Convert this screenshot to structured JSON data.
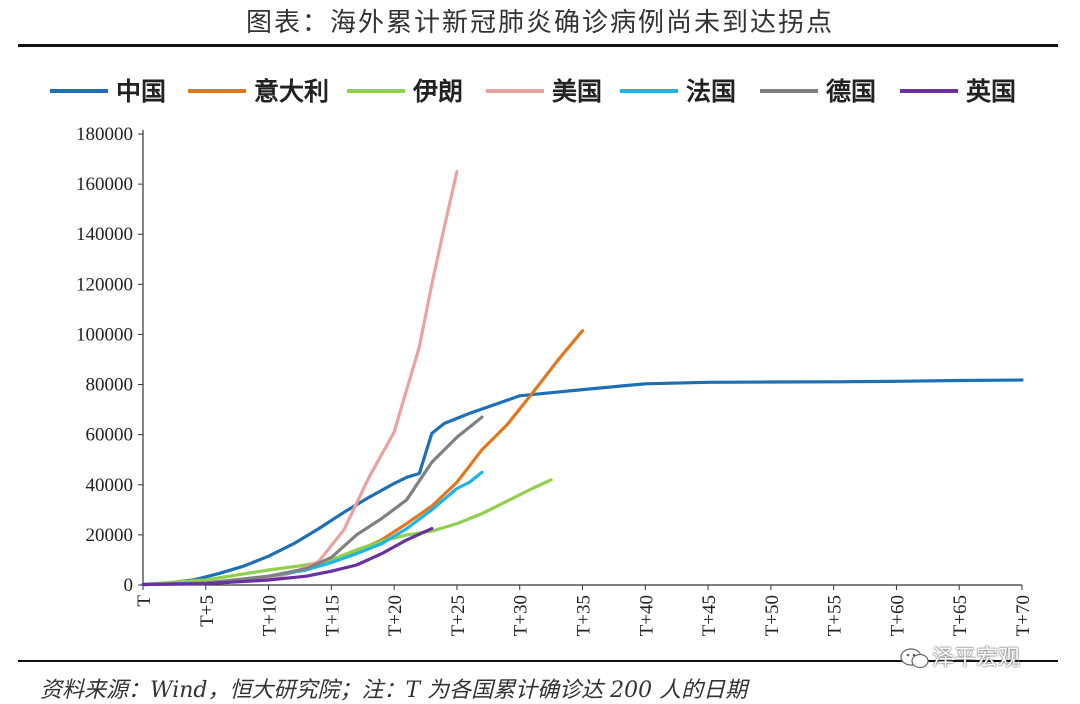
{
  "header": {
    "title": "图表：海外累计新冠肺炎确诊病例尚未到达拐点"
  },
  "footer": {
    "source": "资料来源：Wind，恒大研究院；注：T 为各国累计确诊达 200 人的日期",
    "watermark": "泽平宏观"
  },
  "colors": {
    "中国": "#1f6fb4",
    "意大利": "#e0781e",
    "伊朗": "#8fd14f",
    "美国": "#e8a3a0",
    "法国": "#1cb6e6",
    "德国": "#808080",
    "英国": "#6a2fa0"
  },
  "chart_data": {
    "type": "line",
    "title": "",
    "xlabel": "",
    "ylabel": "",
    "x_ticks": [
      "T",
      "T+5",
      "T+10",
      "T+15",
      "T+20",
      "T+25",
      "T+30",
      "T+35",
      "T+40",
      "T+45",
      "T+50",
      "T+55",
      "T+60",
      "T+65",
      "T+70"
    ],
    "y_ticks": [
      "0",
      "20000",
      "40000",
      "60000",
      "80000",
      "100000",
      "120000",
      "140000",
      "160000",
      "180000"
    ],
    "xlim": [
      0,
      70
    ],
    "ylim": [
      0,
      180000
    ],
    "grid": false,
    "legend_position": "top",
    "series": [
      {
        "name": "中国",
        "x": [
          0,
          2,
          4,
          6,
          8,
          10,
          12,
          14,
          16,
          18,
          20,
          21,
          22,
          23,
          24,
          26,
          28,
          30,
          32,
          35,
          40,
          45,
          50,
          55,
          60,
          65,
          70
        ],
        "y": [
          200,
          800,
          2000,
          4500,
          7500,
          11500,
          16500,
          22500,
          29000,
          35000,
          40500,
          43000,
          44500,
          60500,
          64500,
          68500,
          72000,
          75500,
          76500,
          78000,
          80300,
          80900,
          81000,
          81100,
          81300,
          81600,
          81800
        ]
      },
      {
        "name": "意大利",
        "x": [
          0,
          5,
          10,
          13,
          15,
          17,
          19,
          21,
          23,
          25,
          27,
          29,
          31,
          33,
          35
        ],
        "y": [
          200,
          800,
          3000,
          6500,
          10000,
          13500,
          18000,
          24500,
          31500,
          41000,
          54000,
          64000,
          76500,
          89500,
          101500
        ]
      },
      {
        "name": "伊朗",
        "x": [
          0,
          5,
          10,
          13,
          15,
          17,
          19,
          21,
          23,
          25,
          27,
          29,
          31,
          32.5
        ],
        "y": [
          200,
          2000,
          6000,
          8000,
          10000,
          14000,
          17500,
          20000,
          21500,
          24500,
          28500,
          33500,
          38500,
          42000
        ]
      },
      {
        "name": "美国",
        "x": [
          0,
          5,
          10,
          12,
          14,
          16,
          18,
          20,
          21,
          22,
          23,
          24,
          25
        ],
        "y": [
          200,
          600,
          2500,
          5000,
          9500,
          22000,
          43000,
          61000,
          78000,
          95000,
          120000,
          143000,
          165000
        ]
      },
      {
        "name": "法国",
        "x": [
          0,
          5,
          10,
          13,
          15,
          17,
          19,
          21,
          23,
          25,
          26,
          27
        ],
        "y": [
          200,
          700,
          3500,
          6000,
          9000,
          12500,
          16500,
          22500,
          30000,
          38500,
          41000,
          45000
        ]
      },
      {
        "name": "德国",
        "x": [
          0,
          5,
          10,
          13,
          15,
          17,
          19,
          21,
          23,
          25,
          27
        ],
        "y": [
          200,
          800,
          3500,
          6500,
          11000,
          20000,
          26500,
          34000,
          49000,
          59000,
          67000
        ]
      },
      {
        "name": "英国",
        "x": [
          0,
          5,
          10,
          13,
          15,
          17,
          19,
          21,
          23
        ],
        "y": [
          200,
          500,
          2000,
          3500,
          5500,
          8000,
          12500,
          18000,
          22500
        ]
      }
    ]
  }
}
